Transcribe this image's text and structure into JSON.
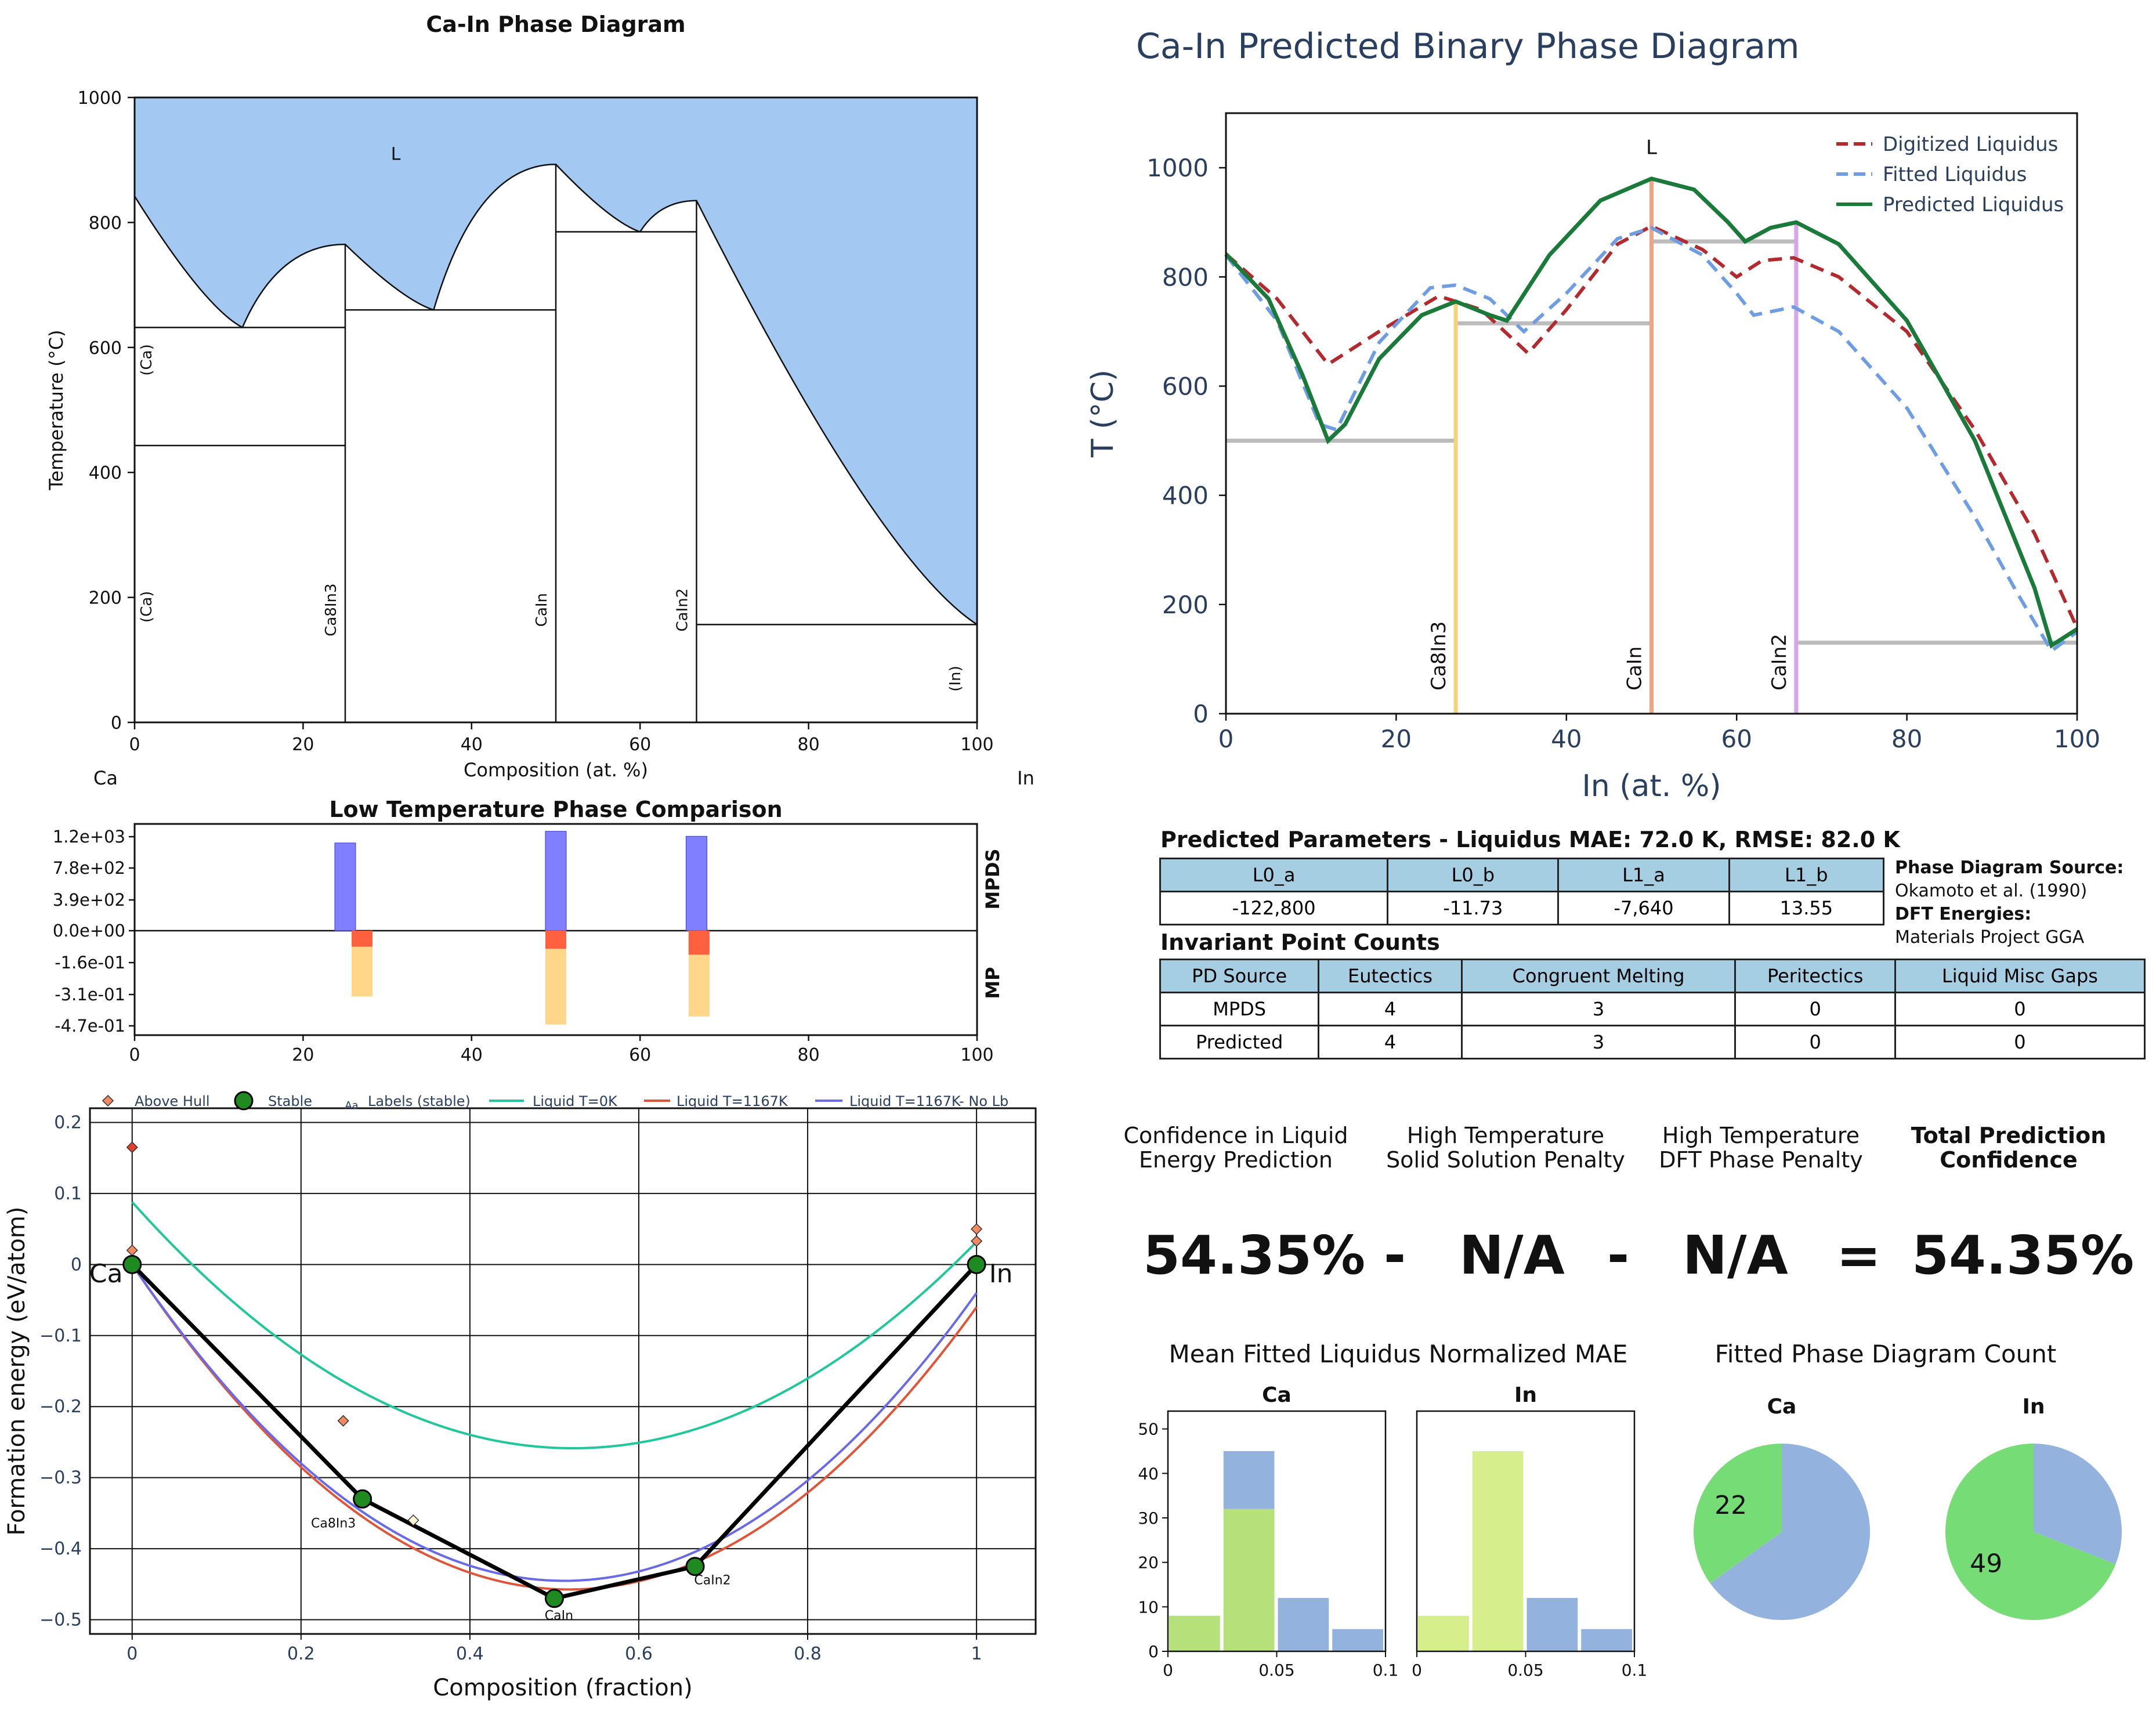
{
  "colors": {
    "liquid_fill": "#a3c9f2",
    "mpds": "#7f7fff",
    "mp_red": "#ff6140",
    "mp_orange": "#ffd68a",
    "green": "#1a7a3a",
    "red_dash": "#b22a2e",
    "blue_dash": "#6f9de3",
    "gray": "#bcbcbc",
    "ca8in3": "#f6d27a",
    "cain": "#f0a486",
    "cain2": "#d4a7e6",
    "hist_green": "#b5e07a",
    "hist_blue": "#93b3de",
    "hist_yellow": "#d7ee8c",
    "pie_green": "#76dc76",
    "pie_blue": "#93b3de"
  },
  "pd1": {
    "title": "Ca-In Phase Diagram",
    "xlabel": "Composition (at. %)",
    "ylabel": "Temperature (°C)",
    "xticks": [
      "0",
      "20",
      "40",
      "60",
      "80",
      "100"
    ],
    "yticks": [
      "0",
      "200",
      "400",
      "600",
      "800",
      "1000"
    ],
    "xlim": [
      0,
      100
    ],
    "ylim": [
      0,
      1000
    ],
    "left_el": "Ca",
    "right_el": "In",
    "liquid_label": "L",
    "liquidus": [
      [
        0,
        842
      ],
      [
        12.8,
        632
      ],
      [
        25,
        765
      ],
      [
        35.5,
        660
      ],
      [
        50,
        893
      ],
      [
        60,
        785
      ],
      [
        66.7,
        835
      ],
      [
        100,
        156.6
      ]
    ],
    "phase_lines": [
      {
        "x": 25,
        "label": "Ca8In3"
      },
      {
        "x": 50,
        "label": "CaIn"
      },
      {
        "x": 66.7,
        "label": "CaIn2"
      }
    ],
    "h_lines": [
      [
        0,
        25,
        632
      ],
      [
        0,
        25,
        443
      ],
      [
        25,
        50,
        660
      ],
      [
        50,
        66.7,
        785
      ],
      [
        66.7,
        100,
        156.6
      ]
    ],
    "region_labels": [
      {
        "x": 2,
        "y": 580,
        "label": "(Ca)"
      },
      {
        "x": 2,
        "y": 185,
        "label": "(Ca)"
      },
      {
        "x": 98,
        "y": 70,
        "label": "(In)"
      }
    ]
  },
  "ltpc": {
    "title": "Low Temperature Phase Comparison",
    "xticks": [
      "0",
      "20",
      "40",
      "60",
      "80",
      "100"
    ],
    "yticks": [
      "1.2e+03",
      "7.8e+02",
      "3.9e+02",
      "0.0e+00",
      "-1.6e-01",
      "-3.1e-01",
      "-4.7e-01"
    ],
    "mpds_label": "MPDS",
    "mp_label": "MP",
    "mpds_bars": [
      {
        "x": 25,
        "value": 1050
      },
      {
        "x": 50,
        "value": 1190
      },
      {
        "x": 66.7,
        "value": 1130
      }
    ],
    "mp_bars": [
      {
        "x": 27,
        "stable": -0.08,
        "total": -0.33
      },
      {
        "x": 50,
        "stable": -0.09,
        "total": -0.47
      },
      {
        "x": 67,
        "stable": -0.12,
        "total": -0.43
      }
    ]
  },
  "hull": {
    "xlabel": "Composition (fraction)",
    "ylabel": "Formation energy (eV/atom)",
    "xticks": [
      "0",
      "0.2",
      "0.4",
      "0.6",
      "0.8",
      "1"
    ],
    "yticks": [
      "0.2",
      "0.1",
      "0",
      "−0.1",
      "−0.2",
      "−0.3",
      "−0.4",
      "−0.5"
    ],
    "xlim": [
      -0.05,
      1.07
    ],
    "ylim": [
      -0.52,
      0.22
    ],
    "legend": [
      "Above Hull",
      "Stable",
      "Labels (stable)",
      "Liquid T=0K",
      "Liquid T=1167K",
      "Liquid T=1167K- No Lb"
    ],
    "legend_aa": "Aa",
    "stable": [
      {
        "x": 0,
        "y": 0,
        "label": "Ca"
      },
      {
        "x": 0.2727,
        "y": -0.33,
        "label": "Ca8In3"
      },
      {
        "x": 0.5,
        "y": -0.47,
        "label": "CaIn"
      },
      {
        "x": 0.6667,
        "y": -0.425,
        "label": "CaIn2"
      },
      {
        "x": 1,
        "y": 0,
        "label": "In"
      }
    ],
    "above_hull": [
      [
        0,
        0.165
      ],
      [
        0,
        0.02
      ],
      [
        0.25,
        -0.22
      ],
      [
        0.333,
        -0.36
      ],
      [
        0.5,
        -0.465
      ],
      [
        1,
        0.05
      ],
      [
        1,
        0.033
      ]
    ],
    "liquid_0K": {
      "a": 0.088,
      "b": 0.032,
      "c": -0.258,
      "xm": 0.5
    },
    "liquid_1167": {
      "a": 0.0,
      "b": -0.06,
      "c": -0.455,
      "xm": 0.48
    },
    "liquid_nolb": {
      "a": 0.0,
      "b": -0.04,
      "c": -0.445,
      "xm": 0.5
    }
  },
  "pd2": {
    "title": "Ca-In Predicted Binary Phase Diagram",
    "xlabel": "In (at. %)",
    "ylabel": "T (°C)",
    "xticks": [
      "0",
      "20",
      "40",
      "60",
      "80",
      "100"
    ],
    "yticks": [
      "0",
      "200",
      "400",
      "600",
      "800",
      "1000"
    ],
    "xlim": [
      0,
      100
    ],
    "ylim": [
      0,
      1100
    ],
    "liquid_label": "L",
    "legend": [
      "Digitized Liquidus",
      "Fitted Liquidus",
      "Predicted Liquidus"
    ],
    "digitized": [
      [
        0,
        842
      ],
      [
        6,
        760
      ],
      [
        12,
        640
      ],
      [
        18,
        700
      ],
      [
        25,
        765
      ],
      [
        30,
        740
      ],
      [
        35.5,
        660
      ],
      [
        40,
        740
      ],
      [
        46,
        860
      ],
      [
        50,
        893
      ],
      [
        56,
        850
      ],
      [
        60,
        800
      ],
      [
        63,
        830
      ],
      [
        66.7,
        835
      ],
      [
        72,
        800
      ],
      [
        80,
        700
      ],
      [
        88,
        520
      ],
      [
        95,
        330
      ],
      [
        100,
        157
      ]
    ],
    "fitted": [
      [
        0,
        840
      ],
      [
        6,
        720
      ],
      [
        11,
        530
      ],
      [
        13,
        520
      ],
      [
        18,
        680
      ],
      [
        24,
        780
      ],
      [
        27,
        785
      ],
      [
        31,
        760
      ],
      [
        35,
        700
      ],
      [
        40,
        770
      ],
      [
        46,
        870
      ],
      [
        50,
        890
      ],
      [
        56,
        840
      ],
      [
        60,
        770
      ],
      [
        62,
        730
      ],
      [
        66.7,
        745
      ],
      [
        72,
        700
      ],
      [
        80,
        560
      ],
      [
        88,
        360
      ],
      [
        93,
        220
      ],
      [
        97,
        115
      ],
      [
        100,
        150
      ]
    ],
    "predicted": [
      [
        0,
        842
      ],
      [
        5,
        760
      ],
      [
        9,
        620
      ],
      [
        12,
        500
      ],
      [
        14,
        530
      ],
      [
        18,
        650
      ],
      [
        23,
        730
      ],
      [
        27,
        755
      ],
      [
        31,
        730
      ],
      [
        33,
        720
      ],
      [
        38,
        840
      ],
      [
        44,
        940
      ],
      [
        50,
        980
      ],
      [
        55,
        960
      ],
      [
        59,
        900
      ],
      [
        61,
        865
      ],
      [
        64,
        890
      ],
      [
        67,
        900
      ],
      [
        72,
        860
      ],
      [
        80,
        720
      ],
      [
        88,
        500
      ],
      [
        95,
        230
      ],
      [
        97,
        125
      ],
      [
        100,
        155
      ]
    ],
    "phase_lines": [
      {
        "x": 27,
        "label": "Ca8In3",
        "color_key": "ca8in3"
      },
      {
        "x": 50,
        "label": "CaIn",
        "color_key": "cain"
      },
      {
        "x": 67,
        "label": "CaIn2",
        "color_key": "cain2"
      }
    ],
    "gray_lines": [
      [
        0,
        27,
        500
      ],
      [
        27,
        50,
        715
      ],
      [
        50,
        67,
        865
      ],
      [
        67,
        100,
        130
      ]
    ]
  },
  "params": {
    "title": "Predicted Parameters - Liquidus MAE: 72.0 K, RMSE: 82.0 K",
    "headers": [
      "L0_a",
      "L0_b",
      "L1_a",
      "L1_b"
    ],
    "values": [
      "-122,800",
      "-11.73",
      "-7,640",
      "13.55"
    ]
  },
  "source": {
    "pd_label": "Phase Diagram Source:",
    "pd_value": "Okamoto et al. (1990)",
    "dft_label": "DFT Energies:",
    "dft_value": "Materials Project GGA"
  },
  "invariants": {
    "title": "Invariant Point Counts",
    "headers": [
      "PD Source",
      "Eutectics",
      "Congruent Melting",
      "Peritectics",
      "Liquid Misc Gaps"
    ],
    "rows": [
      [
        "MPDS",
        "4",
        "3",
        "0",
        "0"
      ],
      [
        "Predicted",
        "4",
        "3",
        "0",
        "0"
      ]
    ]
  },
  "confidence": {
    "h1a": "Confidence in Liquid",
    "h1b": "Energy Prediction",
    "h2a": "High Temperature",
    "h2b": "Solid Solution Penalty",
    "h3a": "High Temperature",
    "h3b": "DFT Phase Penalty",
    "h4a": "Total Prediction",
    "h4b": "Confidence",
    "v1": "54.35%",
    "op1": "-",
    "v2": "N/A",
    "op2": "-",
    "v3": "N/A",
    "op3": "=",
    "v4": "54.35%"
  },
  "hist": {
    "title": "Mean Fitted Liquidus Normalized MAE",
    "panels": [
      {
        "title": "Ca",
        "bars": [
          {
            "x0": 0,
            "x1": 0.025,
            "green": 8,
            "blue": 0
          },
          {
            "x0": 0.025,
            "x1": 0.05,
            "green": 32,
            "blue": 13
          },
          {
            "x0": 0.05,
            "x1": 0.075,
            "green": 0,
            "blue": 12
          },
          {
            "x0": 0.075,
            "x1": 0.1,
            "green": 0,
            "blue": 5
          }
        ]
      },
      {
        "title": "In",
        "bars": [
          {
            "x0": 0,
            "x1": 0.025,
            "green": 8,
            "blue": 0
          },
          {
            "x0": 0.025,
            "x1": 0.05,
            "green": 45,
            "blue": 0
          },
          {
            "x0": 0.05,
            "x1": 0.075,
            "green": 0,
            "blue": 12
          },
          {
            "x0": 0.075,
            "x1": 0.1,
            "green": 0,
            "blue": 5
          }
        ]
      }
    ],
    "yticks": [
      "0",
      "10",
      "20",
      "30",
      "40",
      "50"
    ],
    "xticks": [
      "0",
      "0.05",
      "0.1"
    ]
  },
  "pies": {
    "title": "Fitted Phase Diagram Count",
    "items": [
      {
        "title": "Ca",
        "green": 22,
        "blue": 41,
        "label": "22"
      },
      {
        "title": "In",
        "green": 49,
        "blue": 22,
        "label": "49"
      }
    ]
  }
}
